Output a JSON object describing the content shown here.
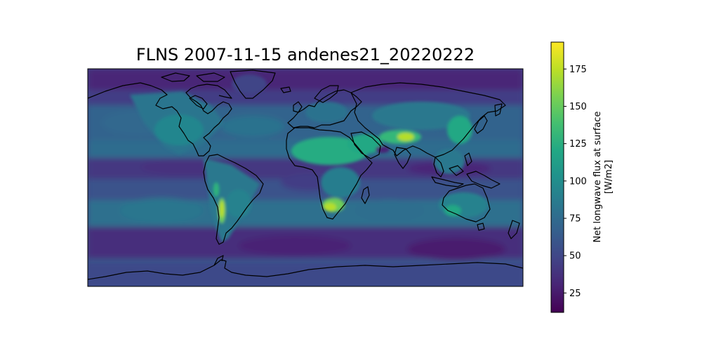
{
  "map": {
    "title": "FLNS 2007-11-15 andenes21_20220222",
    "projection": "PlateCarree",
    "extent": {
      "lon": [
        -180,
        180
      ],
      "lat": [
        -90,
        90
      ]
    },
    "variable": "FLNS",
    "date": "2007-11-15",
    "case": "andenes21_20220222",
    "colormap": "viridis",
    "coastlines": true,
    "colorbar": {
      "label_line1": "Net longwave flux at surface",
      "label_line2": "[W/m2]",
      "range": [
        12,
        193
      ],
      "ticks": [
        25,
        50,
        75,
        100,
        125,
        150,
        175
      ],
      "tick_labels": [
        "25",
        "50",
        "75",
        "100",
        "125",
        "150",
        "175"
      ],
      "colors": [
        "#440154",
        "#482475",
        "#414487",
        "#355f8d",
        "#2a788e",
        "#21918c",
        "#22a884",
        "#44bf70",
        "#7ad151",
        "#bddf26",
        "#fde725"
      ]
    },
    "coastline_color": "#000000"
  }
}
